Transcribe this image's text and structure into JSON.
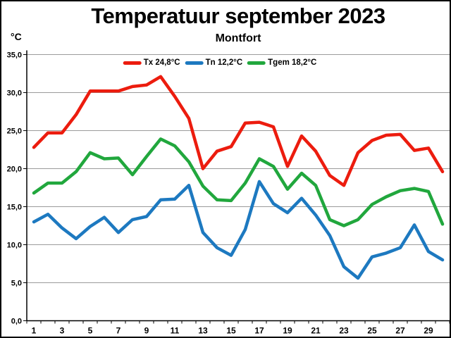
{
  "title": "Temperatuur september 2023",
  "subtitle": "Montfort",
  "y_axis_unit": "°C",
  "legend": [
    {
      "label": "Tx 24,8°C",
      "color": "#ec1c0e"
    },
    {
      "label": "Tn 12,2°C",
      "color": "#1d79c0"
    },
    {
      "label": "Tgem 18,2°C",
      "color": "#21a73d"
    }
  ],
  "colors": {
    "tx_line": "#ec1c0e",
    "tn_line": "#1d79c0",
    "tgem_line": "#21a73d",
    "gridline": "#9b9b9b",
    "axis": "#000000",
    "right_border": "#666666",
    "background": "#ffffff",
    "text": "#000000"
  },
  "chart_data": {
    "type": "line",
    "title": "Temperatuur september 2023",
    "subtitle": "Montfort",
    "xlabel": "",
    "ylabel": "°C",
    "ylim": [
      0,
      35
    ],
    "ytick_step": 5,
    "ytick_labels": [
      "0,0",
      "5,0",
      "10,0",
      "15,0",
      "20,0",
      "25,0",
      "30,0",
      "35,0"
    ],
    "x": [
      1,
      2,
      3,
      4,
      5,
      6,
      7,
      8,
      9,
      10,
      11,
      12,
      13,
      14,
      15,
      16,
      17,
      18,
      19,
      20,
      21,
      22,
      23,
      24,
      25,
      26,
      27,
      28,
      29,
      30
    ],
    "xtick_labels": [
      "1",
      "3",
      "5",
      "7",
      "9",
      "11",
      "13",
      "15",
      "17",
      "19",
      "21",
      "23",
      "25",
      "27",
      "29"
    ],
    "xtick_days": [
      1,
      3,
      5,
      7,
      9,
      11,
      13,
      15,
      17,
      19,
      21,
      23,
      25,
      27,
      29
    ],
    "grid": "horizontal",
    "legend_position": "top-center-inside",
    "series": [
      {
        "name": "Tx 24,8°C",
        "color": "#ec1c0e",
        "values": [
          22.8,
          24.7,
          24.7,
          27.1,
          30.2,
          30.2,
          30.2,
          30.8,
          31.0,
          32.1,
          29.5,
          26.6,
          20.0,
          22.3,
          22.9,
          26.0,
          26.1,
          25.5,
          20.3,
          24.3,
          22.3,
          19.1,
          17.8,
          22.1,
          23.7,
          24.4,
          24.5,
          22.4,
          22.7,
          19.6
        ]
      },
      {
        "name": "Tn 12,2°C",
        "color": "#1d79c0",
        "values": [
          13.0,
          14.0,
          12.2,
          10.8,
          12.4,
          13.6,
          11.6,
          13.3,
          13.7,
          15.9,
          16.0,
          17.8,
          11.6,
          9.6,
          8.6,
          12.0,
          18.3,
          15.4,
          14.2,
          16.1,
          13.9,
          11.2,
          7.1,
          5.6,
          8.4,
          8.9,
          9.6,
          12.6,
          9.1,
          8.0
        ]
      },
      {
        "name": "Tgem 18,2°C",
        "color": "#21a73d",
        "values": [
          16.8,
          18.1,
          18.1,
          19.6,
          22.1,
          21.3,
          21.4,
          19.2,
          21.6,
          23.9,
          23.0,
          20.9,
          17.7,
          15.9,
          15.8,
          18.1,
          21.3,
          20.3,
          17.3,
          19.4,
          17.8,
          13.3,
          12.5,
          13.3,
          15.3,
          16.3,
          17.1,
          17.4,
          17.0,
          12.7
        ]
      }
    ]
  }
}
